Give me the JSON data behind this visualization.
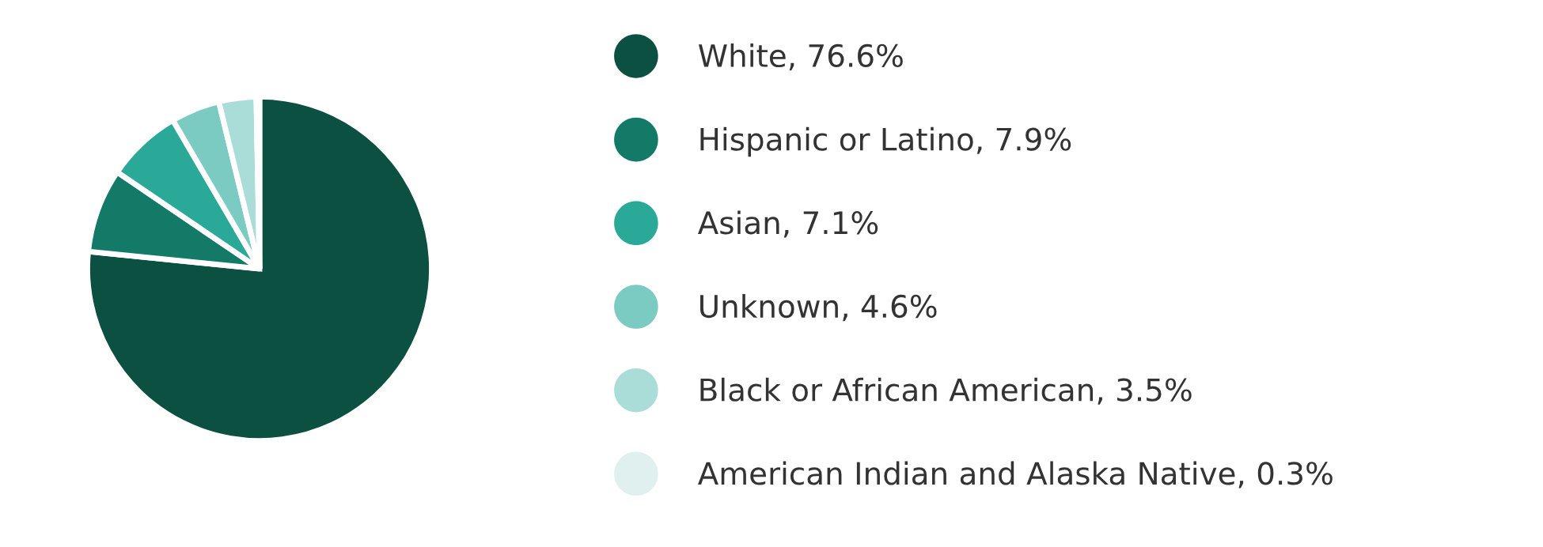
{
  "chart_data": {
    "type": "pie",
    "categories": [
      "White, 76.6%",
      "Hispanic or Latino, 7.9%",
      "Asian, 7.1%",
      "Unknown, 4.6%",
      "Black or African American, 3.5%",
      "American Indian and Alaska Native, 0.3%"
    ],
    "values": [
      76.6,
      7.9,
      7.1,
      4.6,
      3.5,
      0.3
    ],
    "colors": [
      "#0b5040",
      "#137a68",
      "#2aa898",
      "#7ccbc2",
      "#aadcd8",
      "#dff0ef"
    ],
    "legend": "right"
  }
}
